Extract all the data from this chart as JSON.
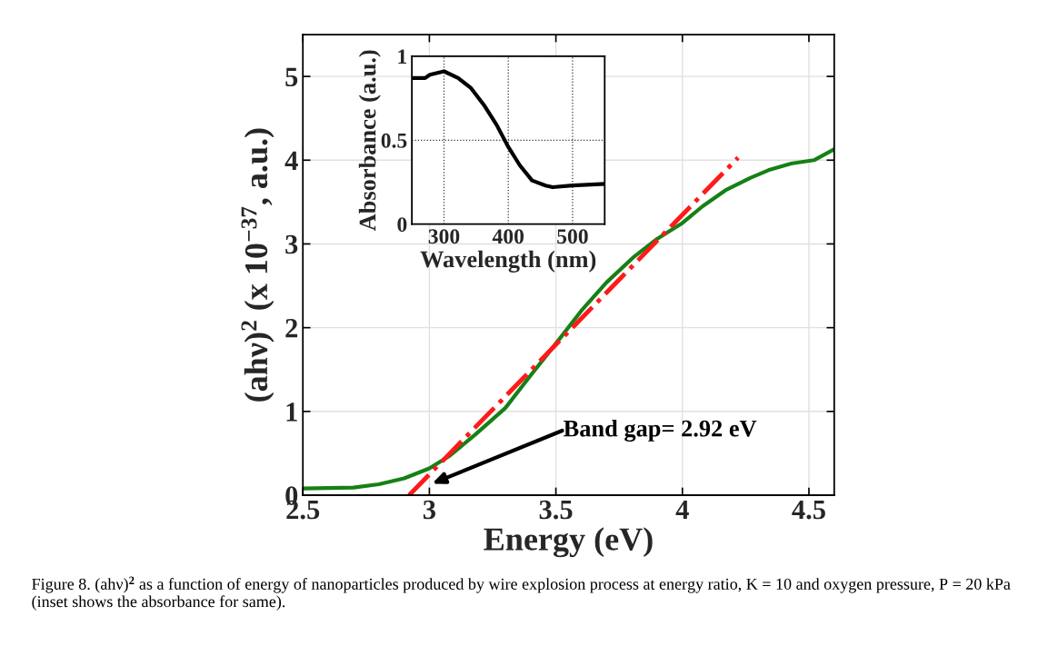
{
  "chart_data": [
    {
      "type": "line",
      "xlabel": "Energy (eV)",
      "ylabel": "(ahν)$^{2}$ (x 10$^{−37}$, a.u.)",
      "xlim": [
        2.5,
        4.6
      ],
      "xticks": [
        2.5,
        3,
        3.5,
        4,
        4.5
      ],
      "ylim": [
        0,
        5.5
      ],
      "yticks": [
        0,
        1,
        2,
        3,
        4,
        5
      ],
      "grid": true,
      "series": [
        {
          "color": "#168016",
          "line_style": "solid",
          "x": [
            2.5,
            2.7,
            2.8,
            2.9,
            3.0,
            3.08,
            3.18,
            3.3,
            3.4,
            3.5,
            3.6,
            3.7,
            3.81,
            3.9,
            4.0,
            4.08,
            4.17,
            4.27,
            4.34,
            4.43,
            4.52,
            4.6
          ],
          "values": [
            0.08,
            0.09,
            0.13,
            0.2,
            0.32,
            0.47,
            0.72,
            1.04,
            1.43,
            1.81,
            2.2,
            2.54,
            2.85,
            3.06,
            3.25,
            3.45,
            3.64,
            3.79,
            3.88,
            3.96,
            4.0,
            4.13
          ]
        },
        {
          "color": "#ff1a1a",
          "line_style": "dashdot",
          "x": [
            2.92,
            4.22
          ],
          "values": [
            0,
            4.03
          ]
        }
      ],
      "annotations": [
        "Band gap= 2.92 eV",
        "Figure 8. (ahν)$^{2}$ as a function of energy of nanoparticles produced by wire explosion process at energy ratio, K = 10 and oxygen pressure, P = 20 kPa (inset shows the absorbance for same)."
      ]
    },
    {
      "type": "line",
      "xlabel": "Wavelength (nm)",
      "ylabel": "Absorbance (a.u.)",
      "xlim": [
        250,
        550
      ],
      "xticks": [
        300,
        400,
        500
      ],
      "ylim": [
        0,
        1
      ],
      "yticks": [
        0,
        0.5,
        1
      ],
      "grid": true,
      "series": [
        {
          "color": "#000000",
          "line_style": "solid",
          "x": [
            250,
            270.7,
            278,
            300,
            322,
            342,
            362,
            382,
            400,
            418,
            437,
            458,
            469,
            500,
            550
          ],
          "values": [
            0.87,
            0.87,
            0.89,
            0.91,
            0.87,
            0.81,
            0.71,
            0.59,
            0.46,
            0.35,
            0.26,
            0.23,
            0.22,
            0.23,
            0.24
          ]
        }
      ]
    }
  ]
}
